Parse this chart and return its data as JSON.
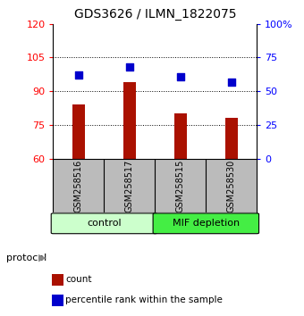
{
  "title": "GDS3626 / ILMN_1822075",
  "samples": [
    "GSM258516",
    "GSM258517",
    "GSM258515",
    "GSM258530"
  ],
  "bar_values": [
    84,
    94,
    80,
    78
  ],
  "scatter_pct": [
    62,
    68,
    61,
    57
  ],
  "bar_color": "#aa1100",
  "scatter_color": "#0000cc",
  "ylim_left": [
    60,
    120
  ],
  "ylim_right": [
    0,
    100
  ],
  "yticks_left": [
    60,
    75,
    90,
    105,
    120
  ],
  "yticks_right": [
    0,
    25,
    50,
    75,
    100
  ],
  "yticklabels_right": [
    "0",
    "25",
    "50",
    "75",
    "100%"
  ],
  "hlines": [
    75,
    90,
    105
  ],
  "groups": [
    {
      "label": "control",
      "indices": [
        0,
        1
      ],
      "color": "#ccffcc"
    },
    {
      "label": "MIF depletion",
      "indices": [
        2,
        3
      ],
      "color": "#44ee44"
    }
  ],
  "protocol_label": "protocol",
  "legend_items": [
    {
      "label": "count",
      "color": "#aa1100"
    },
    {
      "label": "percentile rank within the sample",
      "color": "#0000cc"
    }
  ],
  "background_color": "#ffffff",
  "plot_bg": "#ffffff",
  "sample_box_color": "#bbbbbb",
  "bar_width": 0.25
}
